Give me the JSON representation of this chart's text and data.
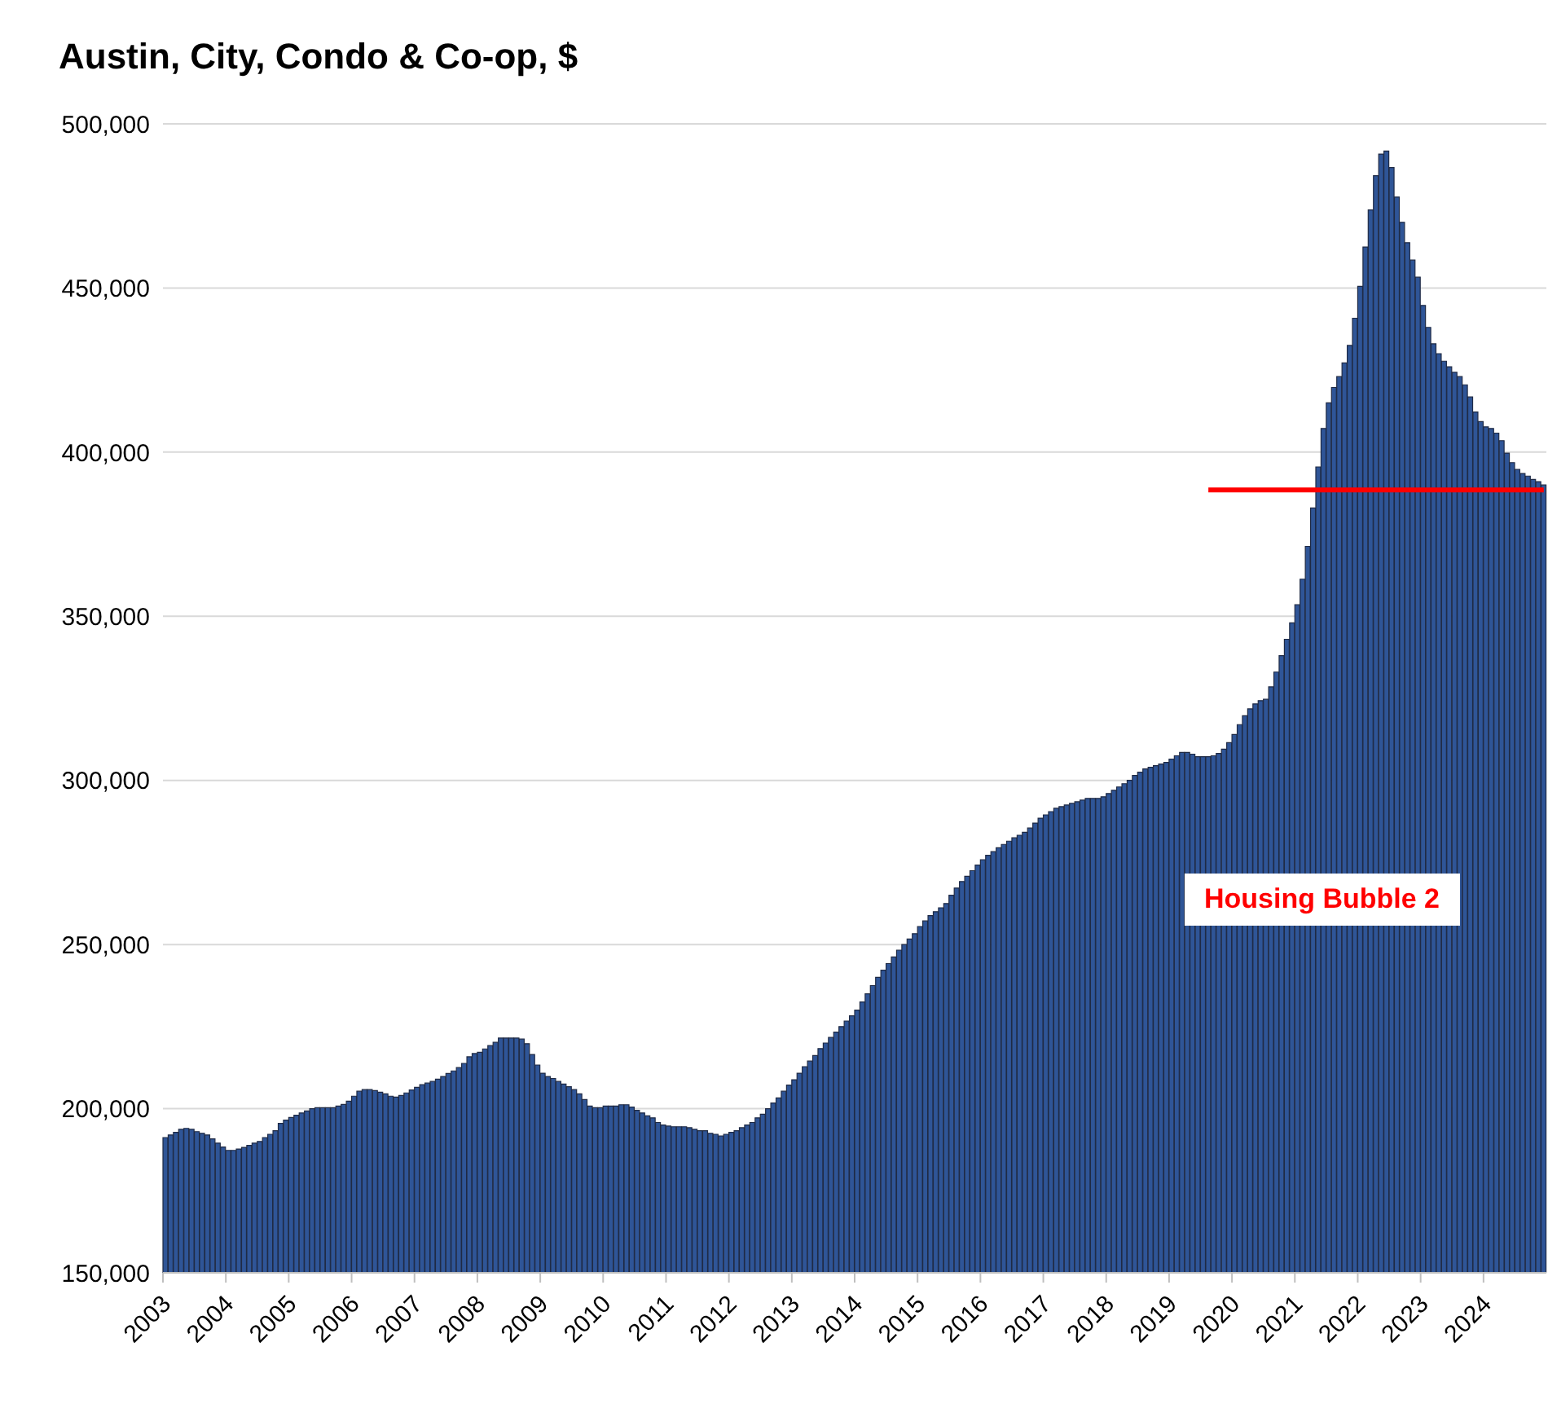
{
  "chart_data": {
    "type": "bar",
    "title": "Austin, City, Condo & Co-op, $",
    "annotations": [
      "Housing Bubble 2"
    ],
    "categories": [
      "2003",
      null,
      null,
      null,
      null,
      null,
      null,
      null,
      null,
      null,
      null,
      null,
      "2004",
      null,
      null,
      null,
      null,
      null,
      null,
      null,
      null,
      null,
      null,
      null,
      "2005",
      null,
      null,
      null,
      null,
      null,
      null,
      null,
      null,
      null,
      null,
      null,
      "2006",
      null,
      null,
      null,
      null,
      null,
      null,
      null,
      null,
      null,
      null,
      null,
      "2007",
      null,
      null,
      null,
      null,
      null,
      null,
      null,
      null,
      null,
      null,
      null,
      "2008",
      null,
      null,
      null,
      null,
      null,
      null,
      null,
      null,
      null,
      null,
      null,
      "2009",
      null,
      null,
      null,
      null,
      null,
      null,
      null,
      null,
      null,
      null,
      null,
      "2010",
      null,
      null,
      null,
      null,
      null,
      null,
      null,
      null,
      null,
      null,
      null,
      "2011",
      null,
      null,
      null,
      null,
      null,
      null,
      null,
      null,
      null,
      null,
      null,
      "2012",
      null,
      null,
      null,
      null,
      null,
      null,
      null,
      null,
      null,
      null,
      null,
      "2013",
      null,
      null,
      null,
      null,
      null,
      null,
      null,
      null,
      null,
      null,
      null,
      "2014",
      null,
      null,
      null,
      null,
      null,
      null,
      null,
      null,
      null,
      null,
      null,
      "2015",
      null,
      null,
      null,
      null,
      null,
      null,
      null,
      null,
      null,
      null,
      null,
      "2016",
      null,
      null,
      null,
      null,
      null,
      null,
      null,
      null,
      null,
      null,
      null,
      "2017",
      null,
      null,
      null,
      null,
      null,
      null,
      null,
      null,
      null,
      null,
      null,
      "2018",
      null,
      null,
      null,
      null,
      null,
      null,
      null,
      null,
      null,
      null,
      null,
      "2019",
      null,
      null,
      null,
      null,
      null,
      null,
      null,
      null,
      null,
      null,
      null,
      "2020",
      null,
      null,
      null,
      null,
      null,
      null,
      null,
      null,
      null,
      null,
      null,
      "2021",
      null,
      null,
      null,
      null,
      null,
      null,
      null,
      null,
      null,
      null,
      null,
      "2022",
      null,
      null,
      null,
      null,
      null,
      null,
      null,
      null,
      null,
      null,
      null,
      "2023",
      null,
      null,
      null,
      null,
      null,
      null,
      null,
      null,
      null,
      null,
      null,
      "2024",
      null,
      null,
      null,
      null,
      null,
      null,
      null,
      null,
      null,
      null,
      null
    ],
    "series": [
      {
        "color": "#2f5597",
        "values": [
          191200,
          192000,
          192800,
          193700,
          194000,
          193700,
          193000,
          192500,
          192000,
          190800,
          189500,
          188300,
          187300,
          187300,
          187700,
          188200,
          188800,
          189500,
          190000,
          191200,
          192200,
          193300,
          195500,
          196500,
          197300,
          198000,
          198700,
          199300,
          200000,
          200300,
          200300,
          200300,
          200300,
          200800,
          201300,
          202300,
          203800,
          205300,
          205800,
          205800,
          205500,
          205000,
          204500,
          203800,
          203500,
          204000,
          204800,
          205700,
          206500,
          207300,
          207800,
          208300,
          209000,
          209800,
          210700,
          211500,
          212500,
          213800,
          215800,
          216800,
          217200,
          218200,
          219200,
          220200,
          221500,
          221500,
          221500,
          221500,
          221200,
          219800,
          216500,
          213300,
          210800,
          209800,
          209200,
          208300,
          207500,
          206700,
          205800,
          204500,
          202800,
          200800,
          200300,
          200300,
          200800,
          200800,
          200800,
          201200,
          201200,
          200500,
          199500,
          198700,
          197800,
          197200,
          195800,
          195000,
          194700,
          194500,
          194500,
          194500,
          194200,
          193700,
          193300,
          193300,
          192500,
          192200,
          191700,
          192200,
          192800,
          193300,
          194200,
          195000,
          195800,
          197200,
          198300,
          200000,
          201700,
          203300,
          205300,
          207200,
          208800,
          210800,
          212800,
          214500,
          216200,
          218300,
          220000,
          221700,
          223300,
          225000,
          226700,
          228300,
          230000,
          232500,
          235000,
          237500,
          240000,
          242200,
          244200,
          246200,
          248300,
          250000,
          251700,
          253300,
          255500,
          257200,
          258800,
          260000,
          261200,
          262500,
          265000,
          267200,
          269200,
          270800,
          272500,
          274200,
          275800,
          277200,
          278300,
          279500,
          280500,
          281500,
          282500,
          283300,
          284200,
          285500,
          287000,
          288500,
          289500,
          290500,
          291500,
          292000,
          292500,
          293000,
          293500,
          294000,
          294500,
          294500,
          294500,
          295000,
          296000,
          297000,
          298000,
          299000,
          300000,
          301500,
          302500,
          303500,
          304000,
          304500,
          305000,
          305500,
          306500,
          307500,
          308500,
          308500,
          308000,
          307200,
          307200,
          307200,
          307500,
          308200,
          309500,
          311500,
          314000,
          317000,
          319700,
          321800,
          323300,
          324300,
          324700,
          328500,
          333000,
          338000,
          343000,
          348000,
          353500,
          361300,
          371300,
          383000,
          395500,
          407200,
          415000,
          419700,
          423000,
          427200,
          432500,
          440800,
          450500,
          462500,
          473800,
          484200,
          490800,
          491700,
          486700,
          477700,
          470000,
          463800,
          458500,
          453300,
          444700,
          438000,
          433000,
          430000,
          427700,
          426000,
          424300,
          423000,
          420500,
          416800,
          412200,
          409300,
          407700,
          407200,
          405800,
          403500,
          399700,
          396800,
          394700,
          393500,
          392700,
          391700,
          391000,
          390000
        ]
      },
      {
        "type": "line",
        "color": "#ff0000",
        "values": [
          null,
          null,
          null,
          null,
          null,
          null,
          null,
          null,
          null,
          null,
          null,
          null,
          null,
          null,
          null,
          null,
          null,
          null,
          null,
          null,
          null,
          null,
          null,
          null,
          null,
          null,
          null,
          null,
          null,
          null,
          null,
          null,
          null,
          null,
          null,
          null,
          null,
          null,
          null,
          null,
          null,
          null,
          null,
          null,
          null,
          null,
          null,
          null,
          null,
          null,
          null,
          null,
          null,
          null,
          null,
          null,
          null,
          null,
          null,
          null,
          null,
          null,
          null,
          null,
          null,
          null,
          null,
          null,
          null,
          null,
          null,
          null,
          null,
          null,
          null,
          null,
          null,
          null,
          null,
          null,
          null,
          null,
          null,
          null,
          null,
          null,
          null,
          null,
          null,
          null,
          null,
          null,
          null,
          null,
          null,
          null,
          null,
          null,
          null,
          null,
          null,
          null,
          null,
          null,
          null,
          null,
          null,
          null,
          null,
          null,
          null,
          null,
          null,
          null,
          null,
          null,
          null,
          null,
          null,
          null,
          null,
          null,
          null,
          null,
          null,
          null,
          null,
          null,
          null,
          null,
          null,
          null,
          null,
          null,
          null,
          null,
          null,
          null,
          null,
          null,
          null,
          null,
          null,
          null,
          null,
          null,
          null,
          null,
          null,
          null,
          null,
          null,
          null,
          null,
          null,
          null,
          null,
          null,
          null,
          null,
          null,
          null,
          null,
          null,
          null,
          null,
          null,
          null,
          null,
          null,
          null,
          null,
          null,
          null,
          null,
          null,
          null,
          null,
          null,
          null,
          null,
          null,
          null,
          null,
          null,
          null,
          null,
          null,
          null,
          null,
          null,
          null,
          null,
          null,
          null,
          null,
          null,
          null,
          null,
          388500,
          388500,
          388500,
          388500,
          388500,
          388500,
          388500,
          388500,
          388500,
          388500,
          388500,
          388500,
          388500,
          388500,
          388500,
          388500,
          388500,
          388500,
          388500,
          388500,
          388500,
          388500,
          388500,
          388500,
          388500,
          388500,
          388500,
          388500,
          388500,
          388500,
          388500,
          388500,
          388500,
          388500,
          388500,
          388500,
          388500,
          388500,
          388500,
          388500,
          388500,
          388500,
          388500,
          388500,
          388500,
          388500,
          388500,
          388500,
          388500,
          388500,
          388500,
          388500,
          388500,
          388500,
          388500,
          388500,
          388500,
          388500,
          388500,
          388500,
          388500,
          388500,
          388500,
          388500,
          388500
        ]
      }
    ],
    "ylim": [
      150000,
      500000
    ],
    "yticks": [
      {
        "value": 150000,
        "label": "150,000"
      },
      {
        "value": 200000,
        "label": "200,000"
      },
      {
        "value": 250000,
        "label": "250,000"
      },
      {
        "value": 300000,
        "label": "300,000"
      },
      {
        "value": 350000,
        "label": "350,000"
      },
      {
        "value": 400000,
        "label": "400,000"
      },
      {
        "value": 450000,
        "label": "450,000"
      },
      {
        "value": 500000,
        "label": "500,000"
      }
    ],
    "grid": "y"
  }
}
